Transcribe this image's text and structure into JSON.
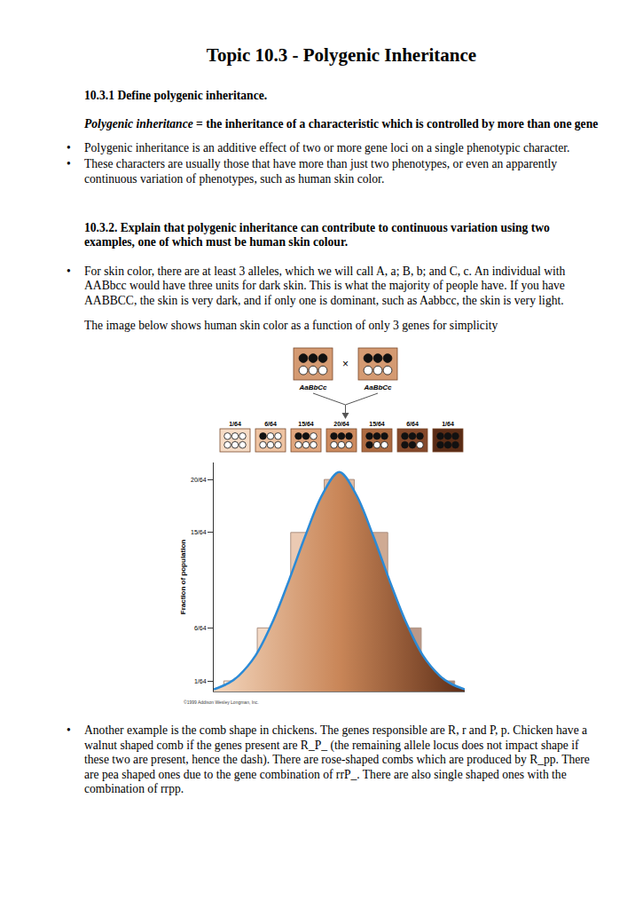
{
  "title": "Topic 10.3 - Polygenic Inheritance",
  "sections": [
    {
      "heading": "10.3.1 Define polygenic inheritance.",
      "definition": {
        "term": "Polygenic inheritance",
        "text": "= the inheritance of a characteristic which is controlled by more than one gene"
      },
      "bullets": [
        "Polygenic inheritance is an additive effect of two or more gene loci on a single phenotypic character.",
        "These characters are usually those that have more than just two phenotypes, or even an apparently continuous variation of phenotypes, such as human skin color."
      ]
    },
    {
      "heading": "10.3.2. Explain that polygenic inheritance can contribute to continuous variation using two examples, one of which must be human skin colour.",
      "bullets": [
        "For skin color, there are at least 3 alleles, which we will call A, a; B, b; and C, c. An individual with AABbcc would have three units for dark skin. This is what the majority of people have. If you have AABBCC, the skin is very dark, and if only one is dominant, such as Aabbcc, the skin is very light."
      ],
      "paragraph": "The image below shows human skin color as a function of only 3 genes for simplicity"
    }
  ],
  "figure": {
    "cross": {
      "symbol": "×",
      "parents": [
        {
          "label": "AaBbCc",
          "alleles": 6,
          "dark_alleles": 3,
          "color": "#d49a72"
        },
        {
          "label": "AaBbCc",
          "alleles": 6,
          "dark_alleles": 3,
          "color": "#d49a72"
        }
      ]
    },
    "offspring": [
      {
        "fraction": "1/64",
        "alleles": 6,
        "dark_alleles": 0,
        "color": "#f6dcc6"
      },
      {
        "fraction": "6/64",
        "alleles": 6,
        "dark_alleles": 1,
        "color": "#eec3a2"
      },
      {
        "fraction": "15/64",
        "alleles": 6,
        "dark_alleles": 2,
        "color": "#e0a67e"
      },
      {
        "fraction": "20/64",
        "alleles": 6,
        "dark_alleles": 3,
        "color": "#cc8a5e"
      },
      {
        "fraction": "15/64",
        "alleles": 6,
        "dark_alleles": 4,
        "color": "#ad6b41"
      },
      {
        "fraction": "6/64",
        "alleles": 6,
        "dark_alleles": 5,
        "color": "#84482a"
      },
      {
        "fraction": "1/64",
        "alleles": 6,
        "dark_alleles": 6,
        "color": "#5a2c16"
      }
    ],
    "credit": "©1999 Addison Wesley Longman, Inc."
  },
  "chart_data": {
    "type": "bar",
    "y_label": "Fraction of population",
    "x": [
      0,
      1,
      2,
      3,
      4,
      5,
      6
    ],
    "values": [
      1,
      6,
      15,
      20,
      15,
      6,
      1
    ],
    "colors": [
      "#f3d6bd",
      "#eabb97",
      "#dc9f76",
      "#c98658",
      "#a9663c",
      "#85472a",
      "#5e2e17"
    ],
    "xlim": [
      -0.75,
      6.75
    ],
    "ylim": [
      0,
      21.6
    ],
    "yticks": [
      {
        "value": 1,
        "label": "1/64"
      },
      {
        "value": 6,
        "label": "6/64"
      },
      {
        "value": 15,
        "label": "15/64"
      },
      {
        "value": 20,
        "label": "20/64"
      }
    ],
    "grid": false,
    "tick_labels": "y",
    "series": [
      {
        "type": "line",
        "color": "#2b8ad6",
        "line_style": "solid",
        "x": [
          -0.75,
          -0.3,
          0,
          0.5,
          1,
          1.5,
          2,
          2.5,
          3,
          3.5,
          4,
          4.5,
          5,
          5.5,
          6,
          6.3,
          6.75
        ],
        "values": [
          0.2,
          0.8,
          1.5,
          3.4,
          6.5,
          10.5,
          14.8,
          18.6,
          20.7,
          18.6,
          14.8,
          10.5,
          6.5,
          3.4,
          1.5,
          0.8,
          0.2
        ]
      }
    ]
  },
  "closing_bullets": [
    "Another example is the comb shape in chickens. The genes responsible are R, r and P, p. Chicken have a walnut shaped comb if the genes present are R_P_ (the remaining allele locus does not impact shape if these two are present, hence the dash). There are rose-shaped combs which are produced by R_pp. There are pea shaped ones due to the gene combination of rrP_. There are also single shaped ones with the combination of rrpp."
  ]
}
